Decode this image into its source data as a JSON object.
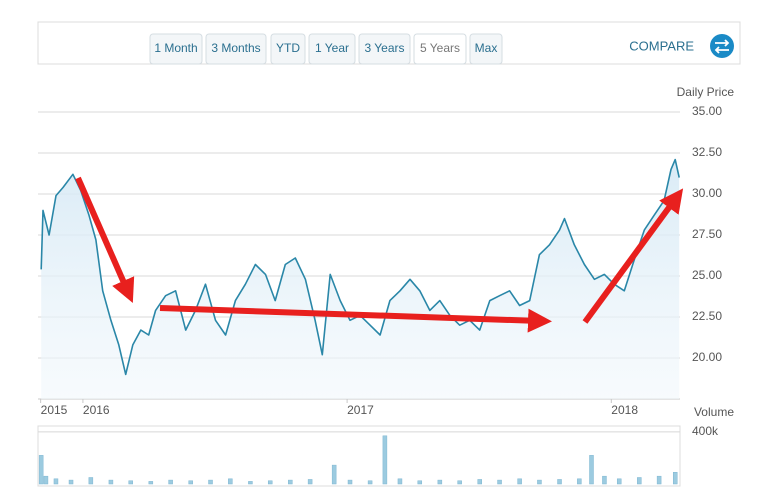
{
  "toolbar": {
    "ranges": [
      "1 Month",
      "3 Months",
      "YTD",
      "1 Year",
      "3 Years",
      "5 Years",
      "Max"
    ],
    "selected": 5,
    "compare": "COMPARE"
  },
  "chart_data": [
    {
      "type": "line",
      "y_label": "Daily Price",
      "x": [
        2015.842,
        2015.849,
        2015.872,
        2015.898,
        2015.925,
        2015.962,
        2015.992,
        2016.023,
        2016.049,
        2016.075,
        2016.106,
        2016.136,
        2016.162,
        2016.189,
        2016.219,
        2016.249,
        2016.275,
        2016.313,
        2016.351,
        2016.389,
        2016.426,
        2016.464,
        2016.502,
        2016.54,
        2016.577,
        2016.615,
        2016.653,
        2016.691,
        2016.728,
        2016.766,
        2016.804,
        2016.842,
        2016.879,
        2016.906,
        2016.936,
        2016.974,
        2017.011,
        2017.049,
        2017.087,
        2017.125,
        2017.162,
        2017.2,
        2017.238,
        2017.275,
        2017.313,
        2017.351,
        2017.389,
        2017.426,
        2017.464,
        2017.502,
        2017.54,
        2017.577,
        2017.615,
        2017.653,
        2017.691,
        2017.728,
        2017.766,
        2017.804,
        2017.823,
        2017.86,
        2017.898,
        2017.936,
        2017.974,
        2018.011,
        2018.049,
        2018.087,
        2018.125,
        2018.162,
        2018.2,
        2018.226,
        2018.242,
        2018.257
      ],
      "series": [
        {
          "color": "#2a87a8",
          "values": [
            25.4,
            29.0,
            27.5,
            29.9,
            30.4,
            31.2,
            30.2,
            28.7,
            27.2,
            24.1,
            22.3,
            20.8,
            19.0,
            20.8,
            21.7,
            21.4,
            22.9,
            23.8,
            24.1,
            21.7,
            22.9,
            24.5,
            22.3,
            21.4,
            23.5,
            24.5,
            25.7,
            25.1,
            23.5,
            25.7,
            26.1,
            24.8,
            22.3,
            20.2,
            25.1,
            23.5,
            22.3,
            22.6,
            22.0,
            21.4,
            23.5,
            24.1,
            24.8,
            24.1,
            22.9,
            23.5,
            22.6,
            22.0,
            22.3,
            21.7,
            23.5,
            23.8,
            24.1,
            23.2,
            23.5,
            26.3,
            26.9,
            27.8,
            28.5,
            26.9,
            25.7,
            24.8,
            25.1,
            24.5,
            24.1,
            26.0,
            27.8,
            28.7,
            29.6,
            31.5,
            32.1,
            31.0
          ]
        }
      ],
      "xlim": [
        2015.83,
        2018.26
      ],
      "xticks": [
        {
          "value": 2015.84,
          "label": "2015"
        },
        2016,
        2017,
        2018
      ],
      "ylim": [
        17.5,
        35
      ],
      "yticks": [
        {
          "value": 20,
          "label": "20.00"
        },
        {
          "value": 22.5,
          "label": "22.50"
        },
        {
          "value": 25,
          "label": "25.00"
        },
        {
          "value": 27.5,
          "label": "27.50"
        },
        {
          "value": 30,
          "label": "30.00"
        },
        {
          "value": 32.5,
          "label": "32.50"
        },
        {
          "value": 35,
          "label": "35.00"
        }
      ],
      "grid": true
    },
    {
      "type": "bar",
      "y_label": "Volume",
      "color": "#9ccbe0",
      "x": [
        2015.842,
        2015.86,
        2015.898,
        2015.955,
        2016.03,
        2016.106,
        2016.181,
        2016.257,
        2016.332,
        2016.408,
        2016.483,
        2016.558,
        2016.634,
        2016.709,
        2016.785,
        2016.86,
        2016.951,
        2017.011,
        2017.087,
        2017.143,
        2017.2,
        2017.275,
        2017.351,
        2017.426,
        2017.502,
        2017.577,
        2017.653,
        2017.728,
        2017.804,
        2017.879,
        2017.925,
        2017.974,
        2018.03,
        2018.106,
        2018.181,
        2018.242
      ],
      "values": [
        220000,
        60000,
        40000,
        30000,
        50000,
        30000,
        25000,
        20000,
        30000,
        25000,
        30000,
        40000,
        20000,
        25000,
        30000,
        35000,
        145000,
        30000,
        25000,
        370000,
        40000,
        25000,
        30000,
        25000,
        35000,
        30000,
        40000,
        30000,
        35000,
        40000,
        220000,
        60000,
        40000,
        50000,
        60000,
        90000
      ],
      "xlim": [
        2015.83,
        2018.26
      ],
      "ylim": [
        0,
        430000
      ],
      "yticks": [
        {
          "value": 400000,
          "label": "400k"
        }
      ],
      "grid": true
    }
  ]
}
